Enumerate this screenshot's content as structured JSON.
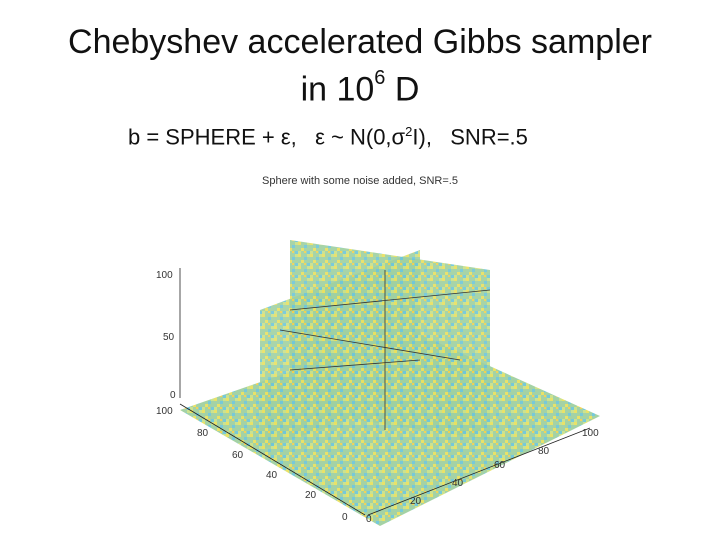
{
  "slide": {
    "title_line1": "Chebyshev accelerated Gibbs sampler",
    "title_line2_prefix": "in 10",
    "title_line2_exponent": "6",
    "title_line2_suffix": " D",
    "equation_part1": "b = SPHERE + ε,   ε ~ N(0,σ",
    "equation_exponent": "2",
    "equation_part2": "I),   SNR=.5"
  },
  "figure": {
    "title": "Sphere with some noise added, SNR=.5",
    "z_ticks": [
      "100",
      "50",
      "0"
    ],
    "y_ticks": [
      "100",
      "80",
      "60",
      "40",
      "20",
      "0"
    ],
    "x_ticks": [
      "0",
      "20",
      "40",
      "60",
      "80",
      "100"
    ],
    "colors": {
      "noise_base": "#9fd0a0",
      "noise_high": "#e8e060",
      "noise_low": "#6fc6d8",
      "slice_lines": "#333333",
      "axis": "#222222"
    }
  }
}
